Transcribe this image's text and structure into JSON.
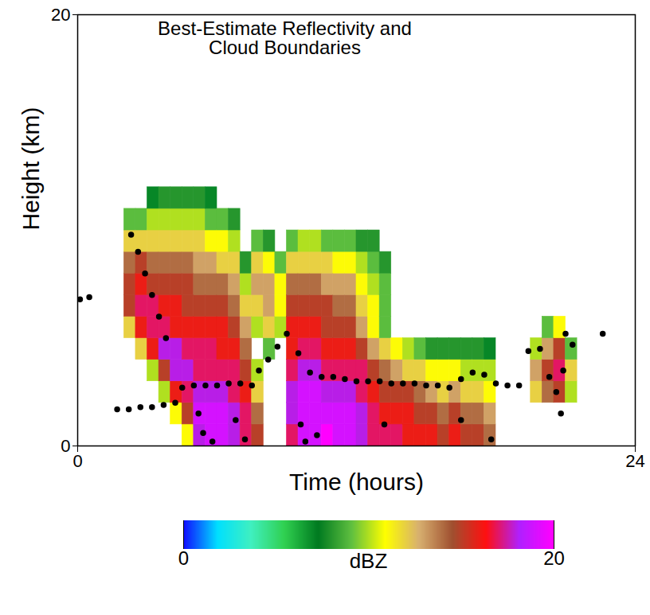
{
  "chart_data": {
    "type": "heatmap",
    "title": "Best-Estimate Reflectivity and Cloud Boundaries",
    "x_label": "Time (hours)",
    "y_label": "Height (km)",
    "xlim": [
      0,
      24
    ],
    "ylim": [
      0,
      20
    ],
    "xticks": [
      0,
      24
    ],
    "yticks": [
      0,
      20
    ],
    "grid": true,
    "cells": {
      "x_bins": [
        2.0,
        2.5,
        3.0,
        3.5,
        4.0,
        4.5,
        5.0,
        5.5,
        6.0,
        6.5,
        7.0,
        7.5,
        8.0,
        8.5,
        9.0,
        9.5,
        10.0,
        10.5,
        11.0,
        11.5,
        12.0,
        12.5,
        13.0,
        13.5,
        14.0,
        14.5,
        15.0,
        15.5,
        16.0,
        16.5,
        17.0,
        17.5,
        18.0,
        18.5,
        19.0,
        19.5,
        20.0,
        20.5,
        21.0,
        21.5
      ],
      "y_bins": [
        0,
        1,
        2,
        3,
        4,
        5,
        6,
        7,
        8,
        9,
        10,
        11,
        12
      ],
      "values": [
        [
          null,
          null,
          null,
          null,
          null,
          12,
          15,
          15,
          14,
          12,
          9,
          null
        ],
        [
          null,
          null,
          null,
          null,
          12,
          16,
          17,
          16,
          15,
          12,
          9,
          null
        ],
        [
          null,
          null,
          null,
          10,
          16,
          17,
          17,
          15,
          14,
          12,
          10,
          7
        ],
        [
          null,
          null,
          10,
          15,
          18,
          17,
          16,
          15,
          14,
          12,
          10,
          8
        ],
        [
          null,
          11,
          16,
          18,
          18,
          16,
          16,
          15,
          14,
          12,
          10,
          8
        ],
        [
          11,
          15,
          17,
          18,
          17,
          16,
          15,
          15,
          14,
          12,
          10,
          8
        ],
        [
          18,
          19,
          18,
          17,
          17,
          16,
          15,
          14,
          13,
          12,
          10,
          8
        ],
        [
          19,
          19,
          18,
          17,
          17,
          16,
          15,
          14,
          13,
          11,
          9,
          7
        ],
        [
          19,
          19,
          18,
          17,
          16,
          16,
          15,
          14,
          12,
          11,
          9,
          null
        ],
        [
          18,
          18,
          17,
          17,
          16,
          15,
          14,
          13,
          12,
          10,
          8,
          null
        ],
        [
          17,
          17,
          16,
          15,
          14,
          13,
          12,
          10,
          8,
          null,
          null,
          null
        ],
        [
          15,
          14,
          12,
          10,
          null,
          10,
          12,
          13,
          12,
          9,
          null,
          null
        ],
        [
          null,
          null,
          null,
          null,
          9,
          12,
          13,
          13,
          11,
          8,
          null,
          null
        ],
        [
          null,
          null,
          null,
          null,
          null,
          10,
          11,
          11,
          9,
          null,
          null,
          null
        ],
        [
          17,
          18,
          18,
          17,
          16,
          16,
          15,
          14,
          12,
          9,
          null,
          null
        ],
        [
          19,
          19,
          19,
          18,
          17,
          16,
          15,
          14,
          12,
          10,
          null,
          null
        ],
        [
          19,
          19,
          19,
          18,
          17,
          16,
          15,
          14,
          12,
          10,
          null,
          null
        ],
        [
          20,
          19,
          18,
          17,
          16,
          15,
          15,
          13,
          12,
          9,
          null,
          null
        ],
        [
          19,
          19,
          18,
          17,
          16,
          15,
          14,
          13,
          11,
          9,
          null,
          null
        ],
        [
          19,
          19,
          18,
          17,
          16,
          15,
          14,
          13,
          11,
          9,
          null,
          null
        ],
        [
          18,
          18,
          17,
          17,
          15,
          13,
          12,
          11,
          10,
          8,
          null,
          null
        ],
        [
          17,
          17,
          16,
          15,
          13,
          11,
          11,
          10,
          9,
          8,
          null,
          null
        ],
        [
          17,
          16,
          15,
          14,
          12,
          9,
          9,
          9,
          8,
          null,
          null,
          null
        ],
        [
          17,
          16,
          15,
          13,
          11,
          null,
          null,
          null,
          null,
          null,
          null,
          null
        ],
        [
          16,
          16,
          15,
          12,
          10,
          null,
          null,
          null,
          null,
          null,
          null,
          null
        ],
        [
          16,
          15,
          14,
          12,
          9,
          null,
          null,
          null,
          null,
          null,
          null,
          null
        ],
        [
          16,
          15,
          13,
          11,
          8,
          null,
          null,
          null,
          null,
          null,
          null,
          null
        ],
        [
          15,
          14,
          12,
          11,
          8,
          null,
          null,
          null,
          null,
          null,
          null,
          null
        ],
        [
          16,
          15,
          13,
          11,
          8,
          null,
          null,
          null,
          null,
          null,
          null,
          null
        ],
        [
          15,
          14,
          12,
          10,
          8,
          null,
          null,
          null,
          null,
          null,
          null,
          null
        ],
        [
          15,
          14,
          12,
          10,
          8,
          null,
          null,
          null,
          null,
          null,
          null,
          null
        ],
        [
          14,
          13,
          11,
          10,
          7,
          null,
          null,
          null,
          null,
          null,
          null,
          null
        ],
        [
          null,
          null,
          null,
          null,
          null,
          null,
          null,
          null,
          null,
          null,
          null,
          null
        ],
        [
          null,
          null,
          null,
          null,
          null,
          null,
          null,
          null,
          null,
          null,
          null,
          null
        ],
        [
          null,
          null,
          null,
          null,
          null,
          null,
          null,
          null,
          null,
          null,
          null,
          null
        ],
        [
          null,
          null,
          12,
          13,
          10,
          null,
          null,
          null,
          null,
          null,
          null,
          null
        ],
        [
          null,
          null,
          14,
          15,
          13,
          9,
          null,
          null,
          null,
          null,
          null,
          null
        ],
        [
          null,
          null,
          15,
          17,
          15,
          11,
          null,
          null,
          null,
          null,
          null,
          null
        ],
        [
          null,
          null,
          10,
          12,
          9,
          null,
          null,
          null,
          null,
          null,
          null,
          null
        ]
      ]
    },
    "colorbar": {
      "label": "dBZ",
      "range": [
        0,
        20
      ],
      "ticks": [
        0,
        20
      ]
    },
    "points": {
      "color": "#000000",
      "marker": "circle",
      "x": [
        0.1,
        0.5,
        2.3,
        2.6,
        2.9,
        3.2,
        3.5,
        3.8,
        1.7,
        2.2,
        2.7,
        3.2,
        3.7,
        4.2,
        4.5,
        5.0,
        5.5,
        6.0,
        6.5,
        7.0,
        7.5,
        5.2,
        5.4,
        5.8,
        6.8,
        7.2,
        7.8,
        8.2,
        8.6,
        9.0,
        9.5,
        10.0,
        9.6,
        9.8,
        10.3,
        10.5,
        11.0,
        11.5,
        12.0,
        12.5,
        13.0,
        13.5,
        14.0,
        14.5,
        15.0,
        15.5,
        16.0,
        16.5,
        17.0,
        17.5,
        18.0,
        18.5,
        19.0,
        13.2,
        16.5,
        17.8,
        19.4,
        19.9,
        20.3,
        20.6,
        20.9,
        21.3,
        21.0,
        20.8,
        22.6
      ],
      "y": [
        6.8,
        6.9,
        9.8,
        9.0,
        8.0,
        7.0,
        6.0,
        5.0,
        1.7,
        1.7,
        1.8,
        1.8,
        1.9,
        2.0,
        2.7,
        2.8,
        2.8,
        2.8,
        2.9,
        2.9,
        2.8,
        1.5,
        0.6,
        0.2,
        1.2,
        0.3,
        3.5,
        4.0,
        4.6,
        5.2,
        4.3,
        3.4,
        1.0,
        0.2,
        0.5,
        3.2,
        3.2,
        3.1,
        3.0,
        3.0,
        3.0,
        2.9,
        2.9,
        2.9,
        2.8,
        2.8,
        2.7,
        3.1,
        3.4,
        3.3,
        2.9,
        2.8,
        2.8,
        1.0,
        1.2,
        0.3,
        4.4,
        4.5,
        3.2,
        2.5,
        3.5,
        4.7,
        5.2,
        1.5,
        5.2
      ]
    }
  }
}
